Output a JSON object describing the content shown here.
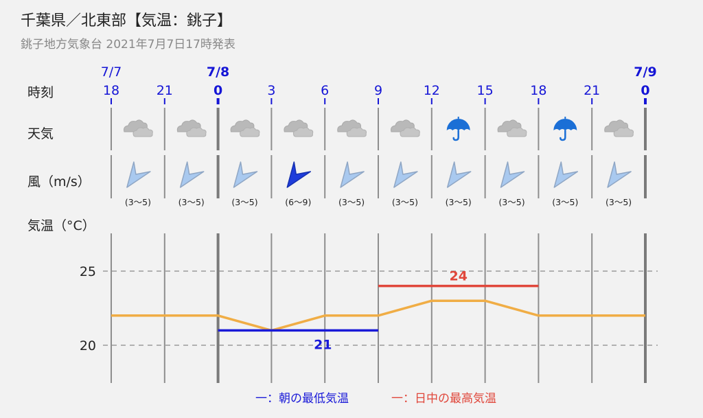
{
  "header": {
    "title": "千葉県／北東部【気温：銚子】",
    "subtitle": "銚子地方気象台 2021年7月7日17時発表"
  },
  "rows": {
    "time": "時刻",
    "weather": "天気",
    "wind": "風（m/s）",
    "temp": "気温（°C）"
  },
  "dates": [
    {
      "label": "7/7",
      "at_index": 0,
      "bold": false
    },
    {
      "label": "7/8",
      "at_index": 2,
      "bold": true
    },
    {
      "label": "7/9",
      "at_index": 10,
      "bold": true
    }
  ],
  "hours": [
    "18",
    "21",
    "0",
    "3",
    "6",
    "9",
    "12",
    "15",
    "18",
    "21",
    "0"
  ],
  "weather": [
    "cloudy",
    "cloudy",
    "cloudy",
    "cloudy",
    "cloudy",
    "cloudy",
    "umbrella",
    "cloudy",
    "umbrella",
    "cloudy"
  ],
  "wind": [
    {
      "range": "(3〜5)",
      "strong": false
    },
    {
      "range": "(3〜5)",
      "strong": false
    },
    {
      "range": "(3〜5)",
      "strong": false
    },
    {
      "range": "(6〜9)",
      "strong": true
    },
    {
      "range": "(3〜5)",
      "strong": false
    },
    {
      "range": "(3〜5)",
      "strong": false
    },
    {
      "range": "(3〜5)",
      "strong": false
    },
    {
      "range": "(3〜5)",
      "strong": false
    },
    {
      "range": "(3〜5)",
      "strong": false
    },
    {
      "range": "(3〜5)",
      "strong": false
    }
  ],
  "legend": {
    "min_label": "一：朝の最低気温",
    "max_label": "一：日中の最高気温"
  },
  "colors": {
    "time_blue": "#1515d6",
    "line_orange": "#f0ad45",
    "min_blue": "#1a1ad8",
    "max_red": "#e0473b",
    "wind_light": "#a9c9ef",
    "wind_dark": "#1f3ddb",
    "umbrella": "#1b6fd6"
  },
  "chart_data": {
    "type": "line",
    "x": [
      "7/7 18",
      "21",
      "7/8 0",
      "3",
      "6",
      "9",
      "12",
      "15",
      "18",
      "21",
      "7/9 0"
    ],
    "series": [
      {
        "values": [
          22,
          22,
          22,
          21,
          22,
          22,
          23,
          23,
          22,
          22,
          22
        ]
      }
    ],
    "min_temp": {
      "value": 21,
      "label": "21",
      "from_index": 2,
      "to_index": 5
    },
    "max_temp": {
      "value": 24,
      "label": "24",
      "from_index": 5,
      "to_index": 8
    },
    "yticks": [
      "25",
      "20"
    ],
    "ylim": [
      18,
      27
    ],
    "grid": "dashed horizontal at 20 and 25"
  }
}
